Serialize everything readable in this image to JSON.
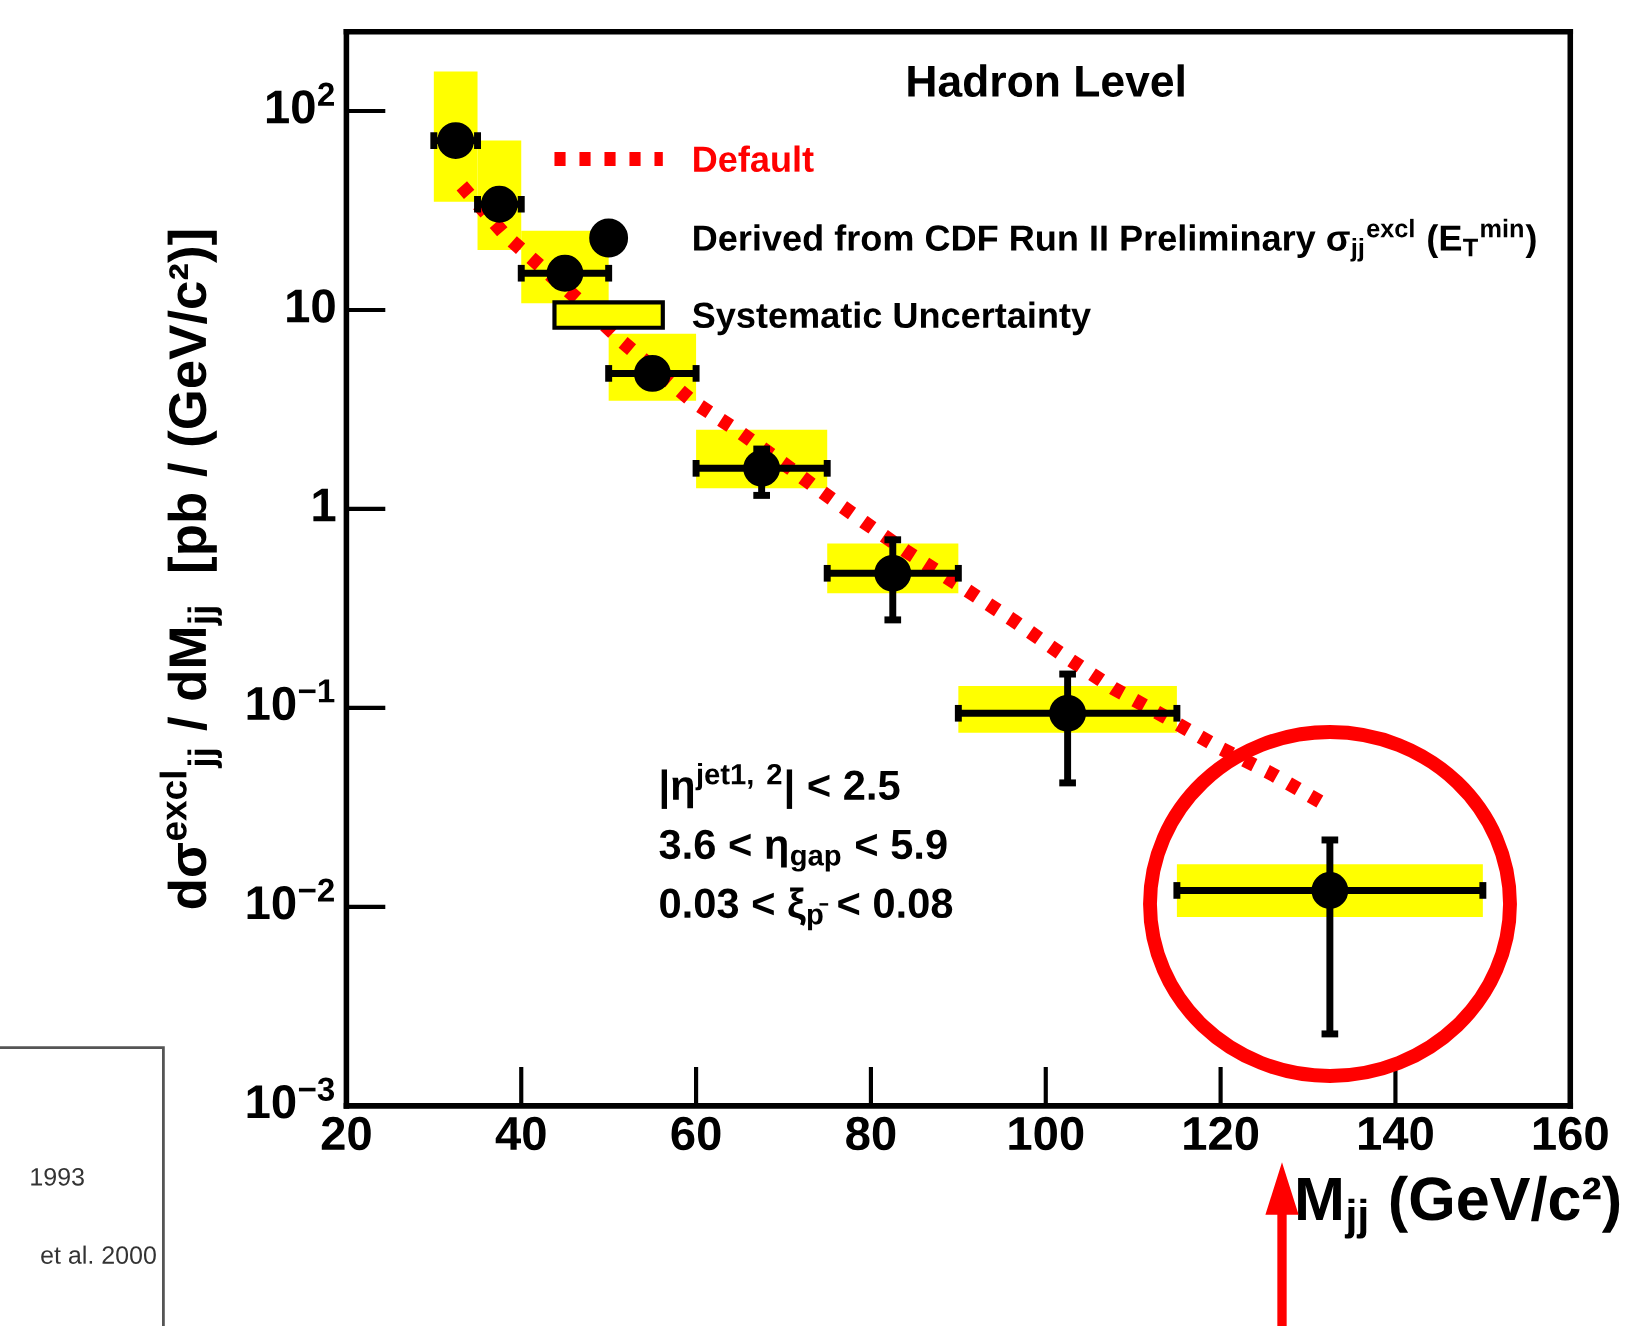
{
  "chart_data": {
    "type": "scatter",
    "legend_title": "Hadron Level",
    "xlabel": "M$_{jj}$ (GeV/c²)",
    "ylabel": "dσ$^{excl}$$_{jj}$ / dM$_{jj}$  [pb / (GeV/c²)]",
    "log": "y",
    "xlim": [
      20,
      160
    ],
    "xticks": [
      20,
      40,
      60,
      80,
      100,
      120,
      140,
      160
    ],
    "ylim": [
      0.001,
      250
    ],
    "yticks": [
      {
        "value": 0.001,
        "label": "10$^{−3}$"
      },
      {
        "value": 0.01,
        "label": "10$^{−2}$"
      },
      {
        "value": 0.1,
        "label": "10$^{−1}$"
      },
      1,
      10,
      {
        "value": 100,
        "label": "10$^{2}$"
      }
    ],
    "grid": false,
    "legend": "top right",
    "series": [
      {
        "name": "Default",
        "type": "line",
        "color": "#ff0000",
        "line_style": "dotted",
        "marker": "none",
        "x": [
          33.2,
          38.2,
          46.4,
          51.6,
          59.5,
          65.2,
          70.6,
          73.6,
          79.2,
          84.1,
          90.6,
          96.3,
          102.0,
          107.8,
          113.5,
          119.6,
          125.7,
          131.8
        ],
        "values": [
          42,
          23.7,
          11.4,
          6.9,
          3.5,
          2.4,
          1.62,
          1.29,
          0.86,
          0.61,
          0.4,
          0.275,
          0.184,
          0.125,
          0.091,
          0.064,
          0.047,
          0.033
        ]
      },
      {
        "name": "Derived from CDF Run II Preliminary σ$_{jj}$$^{excl}$ (E$_{T}$$^{min}$)",
        "color": "#000000",
        "marker": "circle",
        "x": [
          32.5,
          37.5,
          45,
          55,
          67.5,
          82.5,
          102.5,
          132.5
        ],
        "values": [
          71,
          34,
          15.3,
          4.8,
          1.6,
          0.475,
          0.094,
          0.0121
        ],
        "errors": [
          null,
          null,
          null,
          null,
          [
            1.17,
            2.0
          ],
          [
            0.277,
            0.7
          ],
          [
            0.042,
            0.148
          ],
          [
            0.0023,
            0.0217
          ]
        ],
        "xerrors": [
          [
            30,
            35
          ],
          [
            35,
            40
          ],
          [
            40,
            50
          ],
          [
            50,
            60
          ],
          [
            60,
            75
          ],
          [
            75,
            90
          ],
          [
            90,
            115
          ],
          [
            115,
            150
          ]
        ]
      },
      {
        "name": "Systematic Uncertainty",
        "type": "bar",
        "color": "#ffff00",
        "x": [
          32.5,
          37.5,
          45,
          55,
          67.5,
          82.5,
          102.5,
          132.5
        ],
        "base": [
          35,
          20,
          10.8,
          3.5,
          1.27,
          0.377,
          0.075,
          0.0089
        ],
        "values": [
          123,
          51,
          14.2,
          4.1,
          1.23,
          0.293,
          0.054,
          0.0075
        ]
      }
    ],
    "annotations": [
      "|η$^{jet1, 2}$| < 2.5",
      "3.6 < η$_{gap}$ < 5.9",
      "0.03 < ξ$_{p̄}$ < 0.08",
      "1993",
      "et al. 2000"
    ]
  }
}
